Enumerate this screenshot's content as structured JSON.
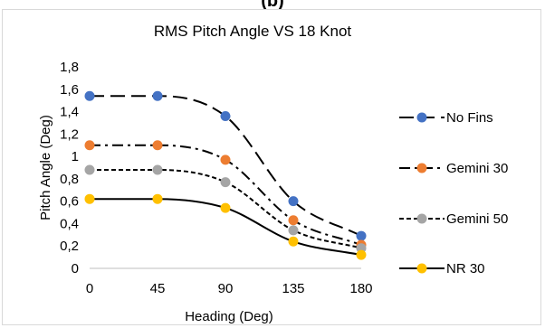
{
  "panel_label": "(b)",
  "chart_data": {
    "type": "line",
    "title": "RMS Pitch Angle VS 18 Knot",
    "xlabel": "Heading  (Deg)",
    "ylabel": "Pitch  Angle (Deg)",
    "x": [
      0,
      45,
      90,
      135,
      180
    ],
    "x_tick_labels": [
      "0",
      "45",
      "90",
      "135",
      "180"
    ],
    "ylim": [
      0,
      1.8
    ],
    "y_ticks": [
      0,
      0.2,
      0.4,
      0.6,
      0.8,
      1,
      1.2,
      1.4,
      1.6,
      1.8
    ],
    "y_tick_labels": [
      "0",
      "0,2",
      "0,4",
      "0,6",
      "0,8",
      "1",
      "1,2",
      "1,4",
      "1,6",
      "1,8"
    ],
    "grid": false,
    "legend_position": "right",
    "smooth": true,
    "series": [
      {
        "name": "No Fins",
        "values": [
          1.54,
          1.54,
          1.36,
          0.6,
          0.29
        ],
        "marker_color": "#4472c4",
        "line_style": "long-dash"
      },
      {
        "name": "Gemini 30",
        "values": [
          1.1,
          1.1,
          0.97,
          0.43,
          0.21
        ],
        "marker_color": "#ed7d31",
        "line_style": "dash-dot"
      },
      {
        "name": "Gemini 50",
        "values": [
          0.88,
          0.88,
          0.77,
          0.34,
          0.18
        ],
        "marker_color": "#a5a5a5",
        "line_style": "short-dash"
      },
      {
        "name": "NR 30",
        "values": [
          0.62,
          0.62,
          0.54,
          0.24,
          0.12
        ],
        "marker_color": "#ffc000",
        "line_style": "solid"
      }
    ]
  }
}
